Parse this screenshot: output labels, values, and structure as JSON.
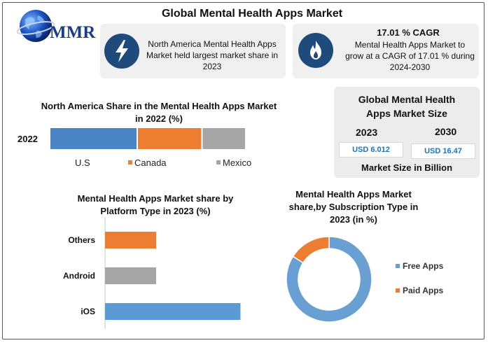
{
  "brand": {
    "logo_text": "MMR"
  },
  "title": "Global Mental Health Apps Market",
  "info_cards": [
    {
      "icon": "lightning-bolt-icon",
      "text": "North America Mental Health Apps Market held largest market share in 2023"
    },
    {
      "icon": "fire-icon",
      "heading": "17.01 % CAGR",
      "text": "Mental Health Apps Market to grow at a CAGR of 17.01 % during 2024-2030"
    }
  ],
  "market_size": {
    "title": "Global Mental Health Apps Market Size",
    "year_1": "2023",
    "value_1": "USD 6.012",
    "year_2": "2030",
    "value_2": "USD 16.47",
    "footer": "Market Size in Billion"
  },
  "colors": {
    "us": "#4a86c6",
    "canada": "#ed7d31",
    "mexico": "#a5a5a5",
    "free": "#6a9fd4",
    "paid": "#ed7d31",
    "ios": "#5b9bd5",
    "icon_circle": "#1e4a7c"
  },
  "chart_data": [
    {
      "type": "bar",
      "orientation": "horizontal-stacked",
      "title": "North America Share in the Mental Health Apps Market in 2022 (%)",
      "categories": [
        "2022"
      ],
      "series": [
        {
          "name": "U.S",
          "values": [
            50
          ]
        },
        {
          "name": "Canada",
          "values": [
            37
          ]
        },
        {
          "name": "Mexico",
          "values": [
            25
          ]
        }
      ],
      "legend": "bottom"
    },
    {
      "type": "bar",
      "orientation": "horizontal",
      "title": "Mental Health Apps Market share by Platform Type in 2023  (%)",
      "categories": [
        "Others",
        "Android",
        "iOS"
      ],
      "values": [
        20,
        20,
        53
      ]
    },
    {
      "type": "pie",
      "style": "donut",
      "title": "Mental Health Apps Market share,by Subscription Type in 2023 (in %)",
      "categories": [
        "Free Apps",
        "Paid Apps"
      ],
      "values": [
        84,
        16
      ],
      "legend": "right"
    }
  ]
}
